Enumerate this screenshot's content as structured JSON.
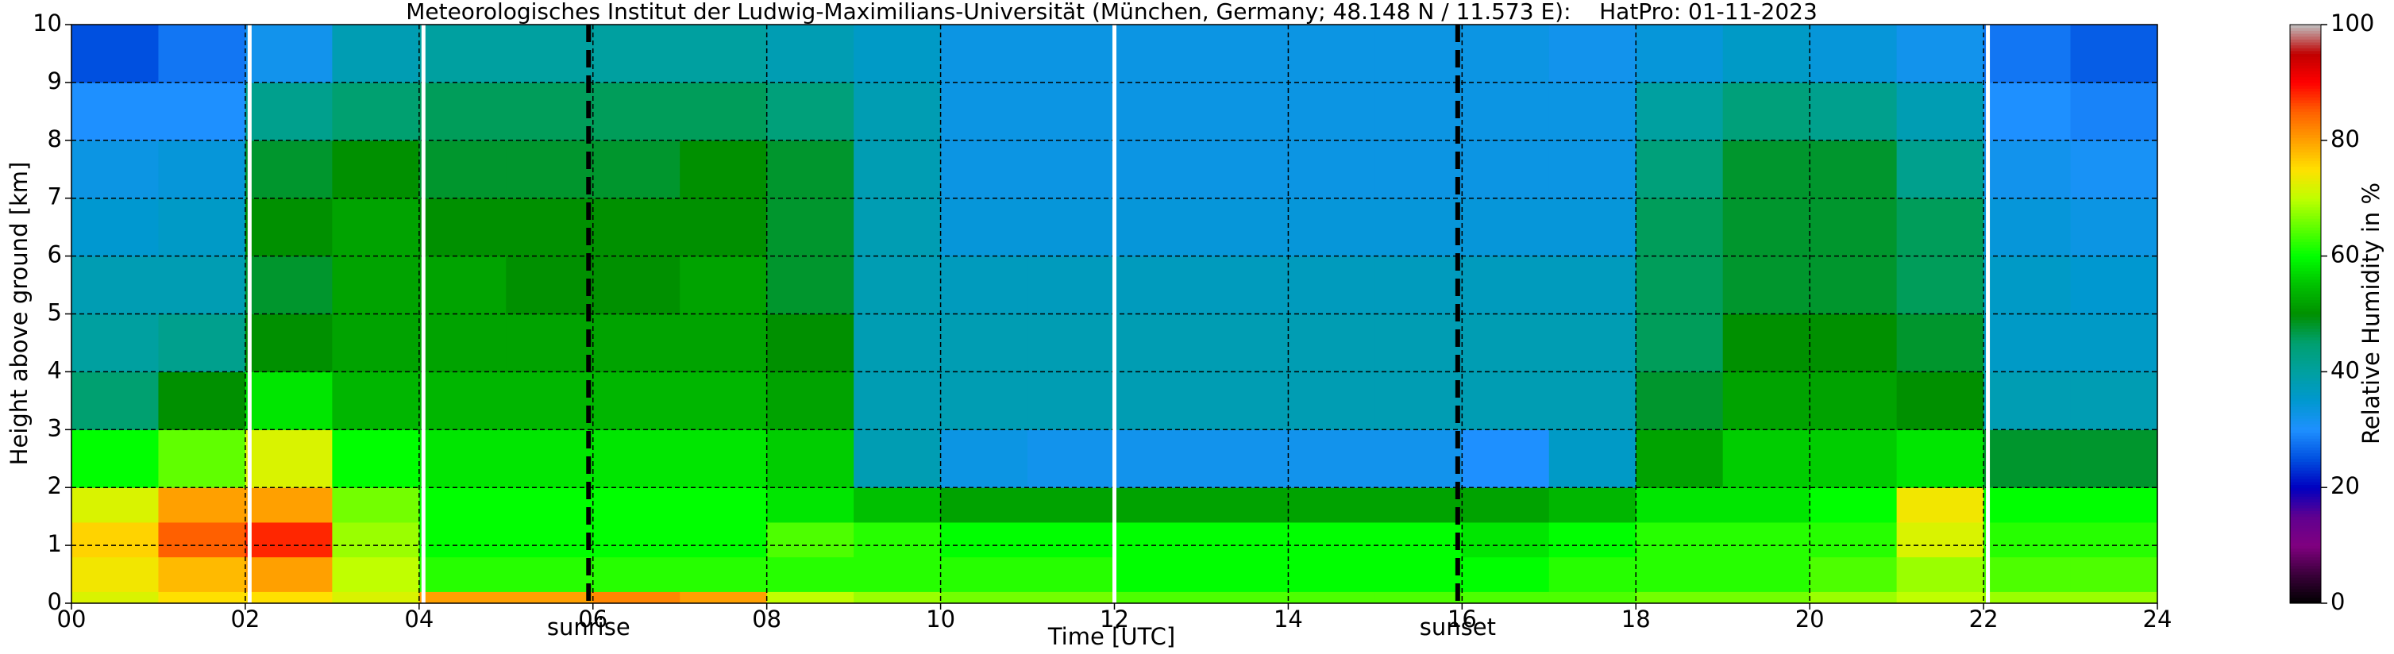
{
  "chart_data": {
    "type": "heatmap",
    "title": "Meteorologisches Institut der Ludwig-Maximilians-Universität (München, Germany; 48.148 N / 11.573 E):    HatPro: 01-11-2023",
    "xlabel": "Time [UTC]",
    "ylabel": "Height above ground [km]",
    "colorbar_label": "Relative Humidity in %",
    "x_edges": [
      0,
      1,
      2,
      3,
      4,
      5,
      6,
      7,
      8,
      9,
      10,
      11,
      12,
      13,
      14,
      15,
      16,
      17,
      18,
      19,
      20,
      21,
      22,
      23,
      24
    ],
    "y_edges": [
      0,
      0.2,
      0.8,
      1.4,
      2,
      3,
      4,
      5,
      6,
      7,
      8,
      9,
      10
    ],
    "z": [
      [
        72,
        74,
        76,
        72,
        60,
        45,
        40,
        38,
        35,
        33,
        30,
        25
      ],
      [
        75,
        78,
        85,
        80,
        65,
        50,
        42,
        38,
        36,
        34,
        30,
        28
      ],
      [
        75,
        80,
        88,
        80,
        72,
        58,
        50,
        48,
        50,
        48,
        42,
        32
      ],
      [
        72,
        70,
        68,
        66,
        60,
        54,
        52,
        52,
        52,
        50,
        45,
        38
      ],
      [
        80,
        62,
        60,
        60,
        58,
        54,
        52,
        52,
        50,
        48,
        46,
        40
      ],
      [
        80,
        62,
        60,
        60,
        58,
        54,
        52,
        50,
        50,
        48,
        46,
        40
      ],
      [
        82,
        62,
        60,
        60,
        58,
        54,
        52,
        50,
        50,
        48,
        46,
        40
      ],
      [
        80,
        62,
        60,
        60,
        58,
        54,
        52,
        52,
        50,
        50,
        46,
        40
      ],
      [
        70,
        62,
        64,
        58,
        56,
        52,
        50,
        48,
        48,
        48,
        44,
        38
      ],
      [
        68,
        62,
        62,
        55,
        38,
        38,
        38,
        38,
        38,
        38,
        38,
        36
      ],
      [
        66,
        62,
        60,
        52,
        33,
        38,
        38,
        37,
        34,
        33,
        33,
        33
      ],
      [
        66,
        62,
        60,
        52,
        32,
        38,
        38,
        37,
        34,
        33,
        33,
        33
      ],
      [
        64,
        60,
        60,
        52,
        32,
        38,
        38,
        37,
        34,
        33,
        33,
        33
      ],
      [
        64,
        60,
        60,
        52,
        32,
        38,
        38,
        37,
        34,
        33,
        33,
        33
      ],
      [
        64,
        60,
        60,
        52,
        32,
        38,
        38,
        37,
        34,
        33,
        33,
        33
      ],
      [
        64,
        60,
        60,
        52,
        32,
        38,
        38,
        37,
        34,
        33,
        33,
        33
      ],
      [
        64,
        60,
        58,
        52,
        30,
        38,
        38,
        37,
        34,
        33,
        33,
        33
      ],
      [
        64,
        62,
        60,
        54,
        36,
        38,
        38,
        37,
        34,
        33,
        33,
        32
      ],
      [
        66,
        62,
        62,
        58,
        52,
        48,
        46,
        46,
        46,
        44,
        40,
        34
      ],
      [
        66,
        62,
        62,
        58,
        56,
        52,
        50,
        48,
        48,
        48,
        44,
        36
      ],
      [
        68,
        64,
        62,
        60,
        56,
        52,
        50,
        48,
        48,
        48,
        42,
        34
      ],
      [
        70,
        68,
        72,
        74,
        58,
        50,
        48,
        46,
        46,
        42,
        38,
        32
      ],
      [
        68,
        64,
        62,
        60,
        48,
        38,
        36,
        36,
        34,
        32,
        30,
        28
      ],
      [
        68,
        64,
        62,
        60,
        48,
        38,
        36,
        35,
        33,
        31,
        29,
        26
      ]
    ],
    "xlim": [
      0,
      24
    ],
    "ylim": [
      0,
      10
    ],
    "xticks": [
      {
        "value": 0,
        "label": "00"
      },
      {
        "value": 2,
        "label": "02"
      },
      {
        "value": 4,
        "label": "04"
      },
      {
        "value": 6,
        "label": "06"
      },
      {
        "value": 8,
        "label": "08"
      },
      10,
      12,
      14,
      16,
      18,
      20,
      22,
      24
    ],
    "yticks": [
      0,
      1,
      2,
      3,
      4,
      5,
      6,
      7,
      8,
      9,
      10
    ],
    "clim": [
      0,
      100
    ],
    "cticks": [
      0,
      20,
      40,
      60,
      80,
      100
    ],
    "grid": true,
    "colorscale": [
      [
        0,
        "#000000"
      ],
      [
        5,
        "#3a003a"
      ],
      [
        10,
        "#800080"
      ],
      [
        15,
        "#600090"
      ],
      [
        20,
        "#0000c0"
      ],
      [
        25,
        "#0050e0"
      ],
      [
        30,
        "#1e90ff"
      ],
      [
        35,
        "#0098d0"
      ],
      [
        40,
        "#00a0a0"
      ],
      [
        45,
        "#00a070"
      ],
      [
        50,
        "#009000"
      ],
      [
        55,
        "#00c000"
      ],
      [
        60,
        "#00ff00"
      ],
      [
        65,
        "#60ff00"
      ],
      [
        70,
        "#c0ff00"
      ],
      [
        75,
        "#ffe000"
      ],
      [
        80,
        "#ffa000"
      ],
      [
        85,
        "#ff6000"
      ],
      [
        90,
        "#ff0000"
      ],
      [
        95,
        "#c00000"
      ],
      [
        100,
        "#c0c0c0"
      ]
    ],
    "white_lines": [
      2.05,
      4.05,
      12.0,
      22.05
    ],
    "sun_lines": [
      {
        "x": 5.95,
        "label": "sunrise"
      },
      {
        "x": 15.95,
        "label": "sunset"
      }
    ]
  }
}
